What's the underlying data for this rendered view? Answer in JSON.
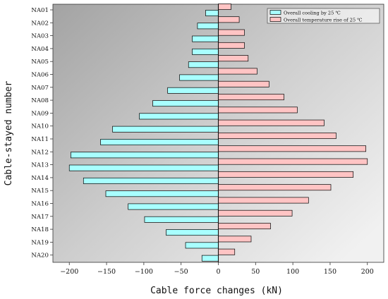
{
  "chart_data": {
    "type": "bar",
    "orientation": "horizontal",
    "categories": [
      "NA01",
      "NA02",
      "NA03",
      "NA04",
      "NA05",
      "NA06",
      "NA07",
      "NA08",
      "NA09",
      "NA10",
      "NA11",
      "NA12",
      "NA13",
      "NA14",
      "NA15",
      "NA16",
      "NA17",
      "NA18",
      "NA19",
      "NA20"
    ],
    "series": [
      {
        "name": "Overall cooling by 25 ℃",
        "color": "#a8ffff",
        "values": [
          -17,
          -28,
          -35,
          -35,
          -40,
          -52,
          -68,
          -88,
          -106,
          -142,
          -158,
          -198,
          -200,
          -181,
          -151,
          -121,
          -99,
          -70,
          -44,
          -22
        ]
      },
      {
        "name": "Overall temperature rise of 25 ℃",
        "color": "#ffc4c4",
        "values": [
          17,
          28,
          35,
          35,
          40,
          52,
          68,
          88,
          106,
          142,
          158,
          198,
          200,
          181,
          151,
          121,
          99,
          70,
          44,
          22
        ]
      }
    ],
    "xlabel": "Cable force changes (kN)",
    "ylabel": "Cable-stayed number",
    "xlim": [
      -222,
      222
    ],
    "xticks": [
      -200,
      -150,
      -100,
      -50,
      0,
      50,
      100,
      150,
      200
    ],
    "legend_position": "top-right",
    "grid": false,
    "background": "gradient-gray"
  }
}
